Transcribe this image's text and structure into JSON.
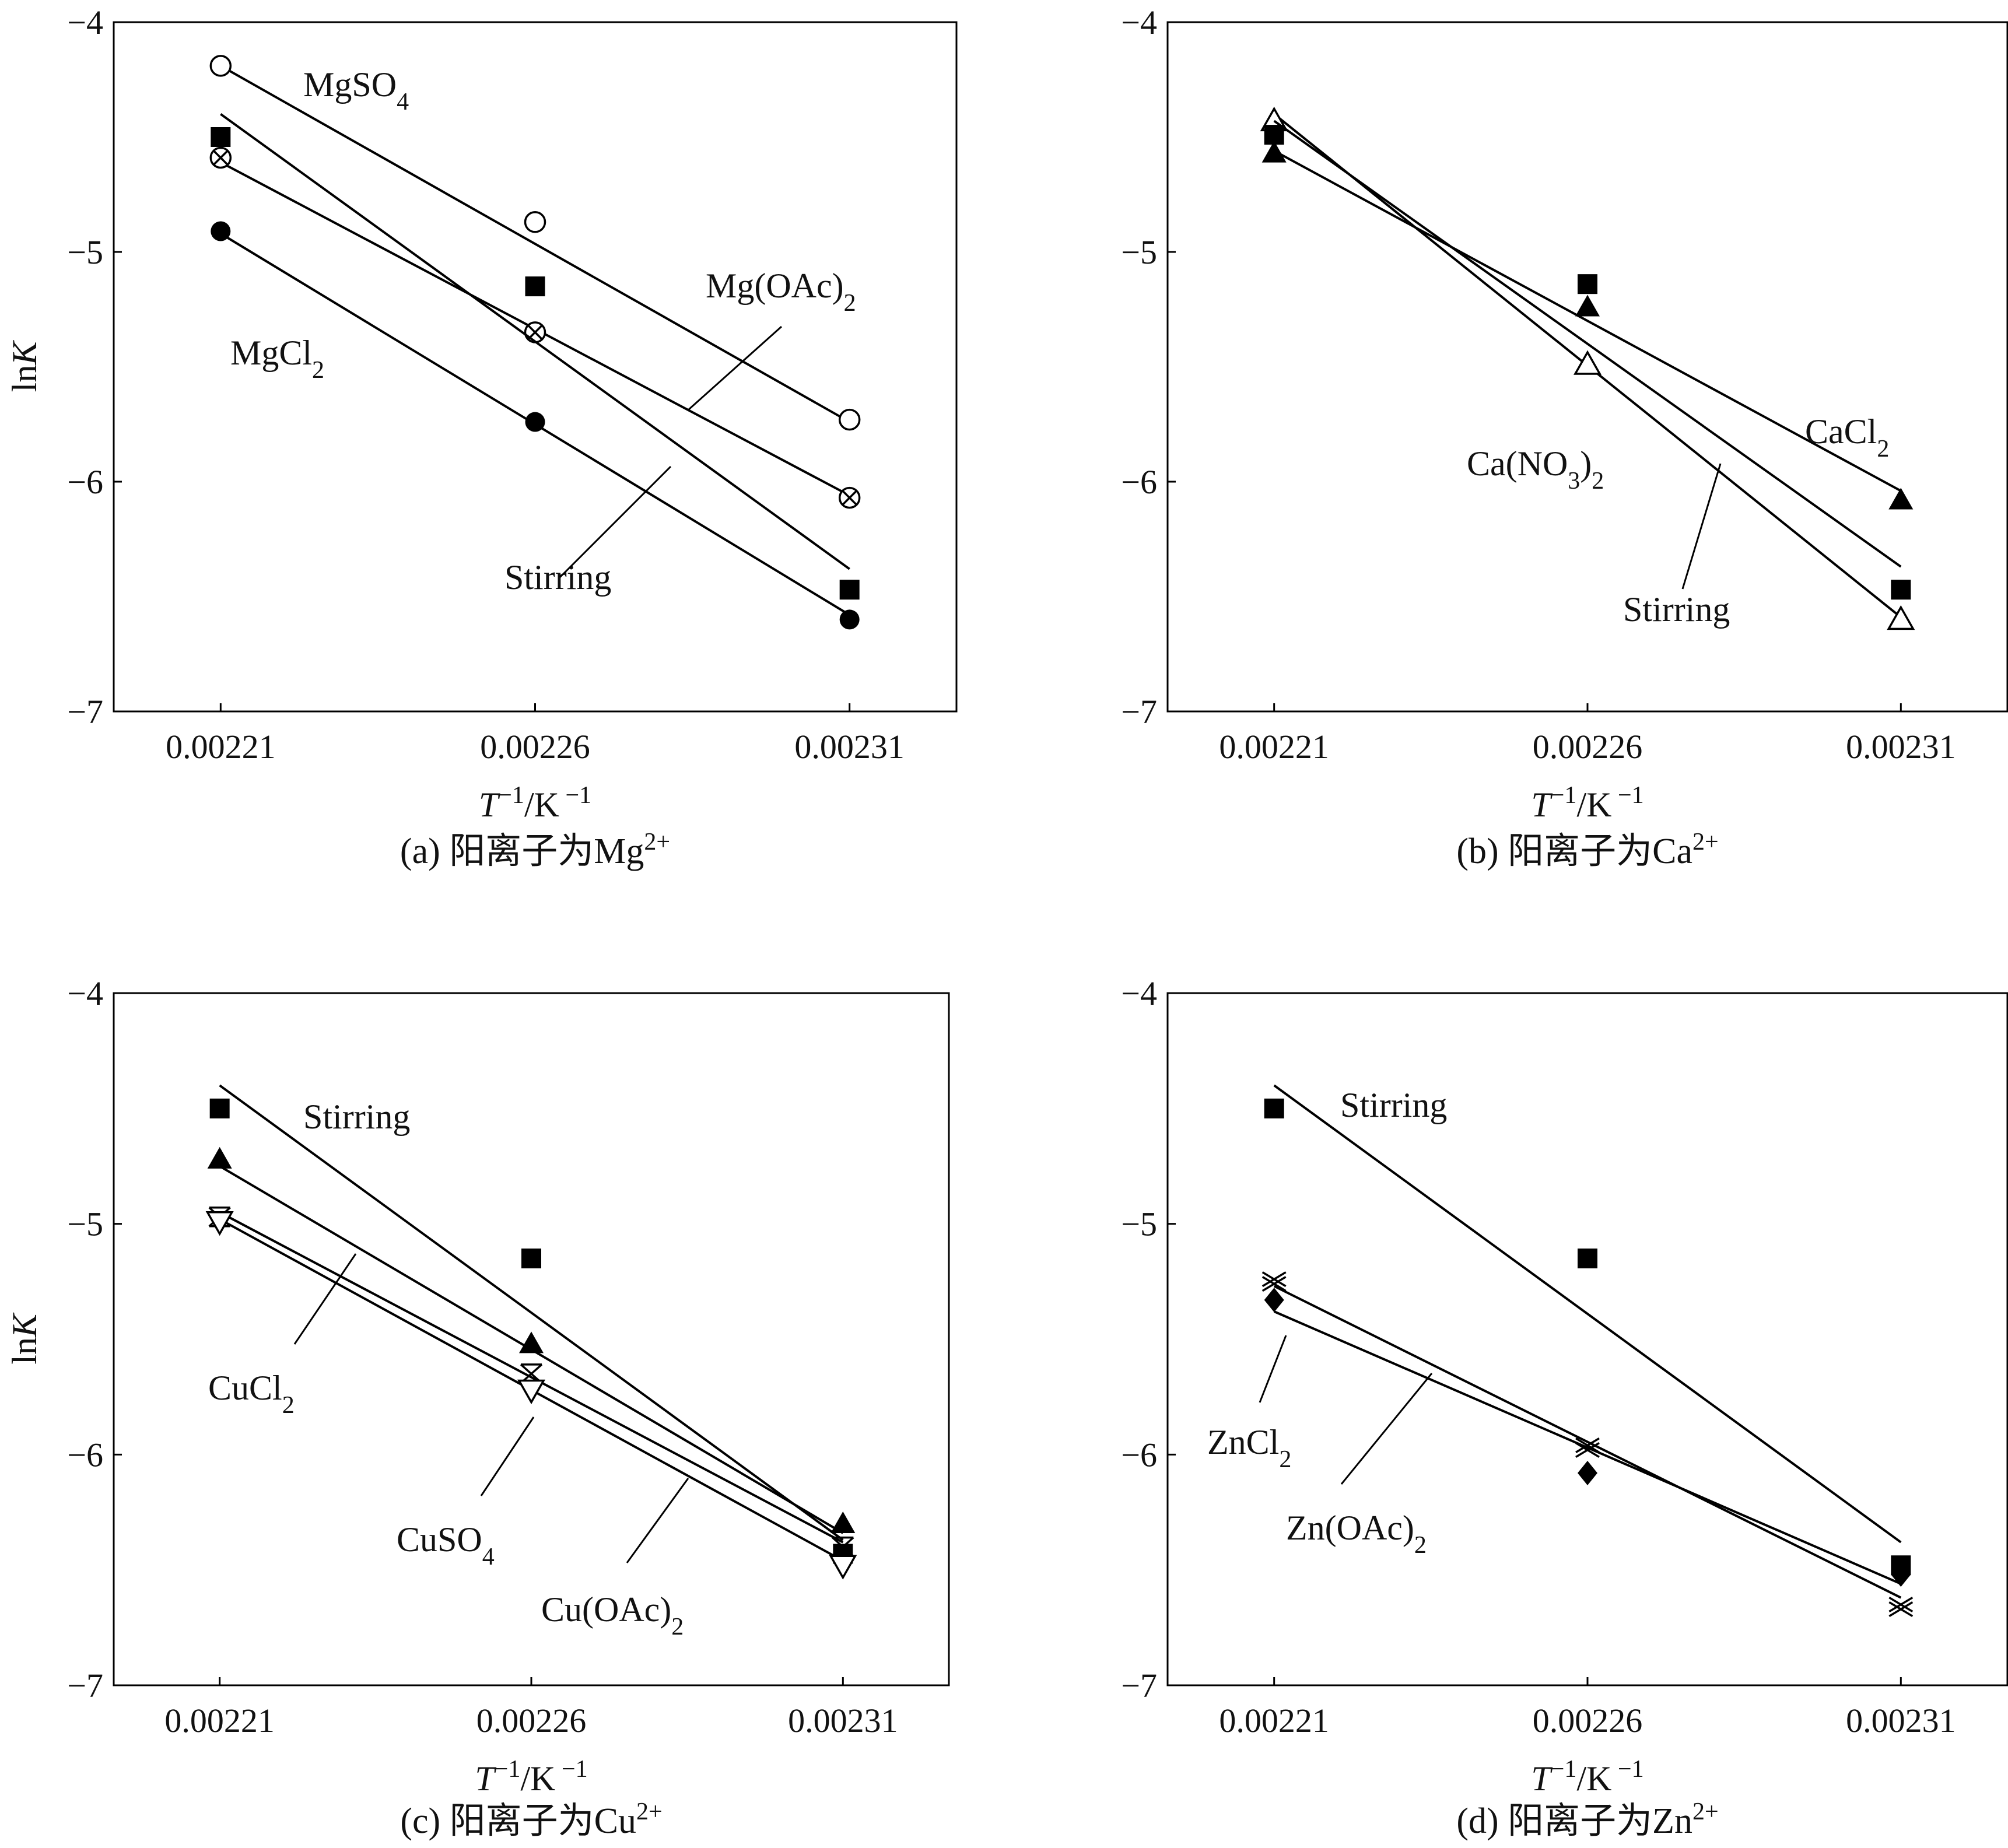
{
  "figure_title": "",
  "chart_data": [
    {
      "panel": "a",
      "type": "scatter",
      "caption": "(a) 阳离子为Mg",
      "caption_ion_charge": "2+",
      "xlabel": "T",
      "xlabel_sup": "−1",
      "xlabel_unit": "/K",
      "xlabel_unit_sup": "−1",
      "ylabel": "ln",
      "ylabel_italic": "K",
      "xticks": [
        "0.00221",
        "0.00226",
        "0.00231"
      ],
      "yticks": [
        "−4",
        "−5",
        "−6",
        "−7"
      ],
      "xlim": [
        0.002193,
        0.002327
      ],
      "ylim": [
        -7,
        -4
      ],
      "series": [
        {
          "name": "MgSO4",
          "label": "MgSO",
          "label_sub": "4",
          "marker": "open-circle",
          "x": [
            0.00221,
            0.00226,
            0.00231
          ],
          "y": [
            -4.19,
            -4.87,
            -5.73
          ],
          "fit": [
            -4.19,
            -5.74
          ]
        },
        {
          "name": "Mg(OAc)2",
          "label": "Mg(OAc)",
          "label_sub": "2",
          "marker": "circle-x",
          "x": [
            0.00221,
            0.00226,
            0.00231
          ],
          "y": [
            -4.59,
            -5.35,
            -6.07
          ],
          "fit": [
            -4.61,
            -6.06
          ]
        },
        {
          "name": "MgCl2",
          "label": "MgCl",
          "label_sub": "2",
          "marker": "filled-circle",
          "x": [
            0.00221,
            0.00226,
            0.00231
          ],
          "y": [
            -4.91,
            -5.74,
            -6.6
          ],
          "fit": [
            -4.92,
            -6.58
          ]
        },
        {
          "name": "Stirring",
          "label": "Stirring",
          "label_sub": "",
          "marker": "filled-square",
          "x": [
            0.00221,
            0.00226,
            0.00231
          ],
          "y": [
            -4.5,
            -5.15,
            -6.47
          ],
          "fit": [
            -4.4,
            -6.38
          ]
        }
      ]
    },
    {
      "panel": "b",
      "type": "scatter",
      "caption": "(b) 阳离子为Ca",
      "caption_ion_charge": "2+",
      "xlabel": "T",
      "xlabel_sup": "−1",
      "xlabel_unit": "/K",
      "xlabel_unit_sup": "−1",
      "ylabel": "ln",
      "ylabel_italic": "K",
      "xticks": [
        "0.00221",
        "0.00226",
        "0.00231"
      ],
      "yticks": [
        "−4",
        "−5",
        "−6",
        "−7"
      ],
      "xlim": [
        0.002193,
        0.002327
      ],
      "ylim": [
        -7,
        -4
      ],
      "series": [
        {
          "name": "CaCl2",
          "label": "CaCl",
          "label_sub": "2",
          "marker": "filled-triangle",
          "x": [
            0.00221,
            0.00226,
            0.00231
          ],
          "y": [
            -4.57,
            -5.24,
            -6.08
          ],
          "fit": [
            -4.56,
            -6.04
          ]
        },
        {
          "name": "Ca(NO3)2",
          "label": "Ca(NO",
          "label_sub": "3",
          "label_tail": ")",
          "label_sub2": "2",
          "marker": "open-triangle",
          "x": [
            0.00221,
            0.00226,
            0.00231
          ],
          "y": [
            -4.43,
            -5.49,
            -6.6
          ],
          "fit": [
            -4.4,
            -6.59
          ]
        },
        {
          "name": "Stirring",
          "label": "Stirring",
          "label_sub": "",
          "marker": "filled-square",
          "x": [
            0.00221,
            0.00226,
            0.00231
          ],
          "y": [
            -4.49,
            -5.14,
            -6.47
          ],
          "fit": [
            -4.43,
            -6.37
          ]
        }
      ]
    },
    {
      "panel": "c",
      "type": "scatter",
      "caption": "(c) 阳离子为Cu",
      "caption_ion_charge": "2+",
      "xlabel": "T",
      "xlabel_sup": "−1",
      "xlabel_unit": "/K",
      "xlabel_unit_sup": "−1",
      "ylabel": "ln",
      "ylabel_italic": "K",
      "xticks": [
        "0.00221",
        "0.00226",
        "0.00231"
      ],
      "yticks": [
        "−4",
        "−5",
        "−6",
        "−7"
      ],
      "xlim": [
        0.002193,
        0.002327
      ],
      "ylim": [
        -7,
        -4
      ],
      "series": [
        {
          "name": "Stirring",
          "label": "Stirring",
          "label_sub": "",
          "marker": "filled-square",
          "x": [
            0.00221,
            0.00226,
            0.00231
          ],
          "y": [
            -4.5,
            -5.15,
            -6.43
          ],
          "fit": [
            -4.4,
            -6.37
          ]
        },
        {
          "name": "CuCl2",
          "label": "CuCl",
          "label_sub": "2",
          "marker": "filled-triangle",
          "x": [
            0.00221,
            0.00226,
            0.00231
          ],
          "y": [
            -4.72,
            -5.52,
            -6.3
          ],
          "fit": [
            -4.75,
            -6.34
          ]
        },
        {
          "name": "CuSO4",
          "label": "CuSO",
          "label_sub": "4",
          "marker": "star-x",
          "x": [
            0.00221,
            0.00226,
            0.00231
          ],
          "y": [
            -4.97,
            -5.65,
            -6.4
          ],
          "fit": [
            -4.95,
            -6.38
          ]
        },
        {
          "name": "Cu(OAc)2",
          "label": "Cu(OAc)",
          "label_sub": "2",
          "marker": "open-down-triangle",
          "x": [
            0.00221,
            0.00226,
            0.00231
          ],
          "y": [
            -4.99,
            -5.72,
            -6.48
          ],
          "fit": [
            -4.98,
            -6.46
          ]
        }
      ]
    },
    {
      "panel": "d",
      "type": "scatter",
      "caption": "(d) 阳离子为Zn",
      "caption_ion_charge": "2+",
      "xlabel": "T",
      "xlabel_sup": "−1",
      "xlabel_unit": "/K",
      "xlabel_unit_sup": "−1",
      "ylabel": "ln",
      "ylabel_italic": "K",
      "xticks": [
        "0.00221",
        "0.00226",
        "0.00231"
      ],
      "yticks": [
        "−4",
        "−5",
        "−6",
        "−7"
      ],
      "xlim": [
        0.002193,
        0.002327
      ],
      "ylim": [
        -7,
        -4
      ],
      "series": [
        {
          "name": "Stirring",
          "label": "Stirring",
          "label_sub": "",
          "marker": "filled-square",
          "x": [
            0.00221,
            0.00226,
            0.00231
          ],
          "y": [
            -4.5,
            -5.15,
            -6.48
          ],
          "fit": [
            -4.4,
            -6.38
          ]
        },
        {
          "name": "ZnCl2",
          "label": "ZnCl",
          "label_sub": "2",
          "marker": "x-cross",
          "x": [
            0.00221,
            0.00226,
            0.00231
          ],
          "y": [
            -5.24,
            -5.96,
            -6.65
          ],
          "fit": [
            -5.27,
            -6.62
          ]
        },
        {
          "name": "Zn(OAc)2",
          "label": "Zn(OAc)",
          "label_sub": "2",
          "marker": "filled-diamond",
          "x": [
            0.00221,
            0.00226,
            0.00231
          ],
          "y": [
            -5.33,
            -6.08,
            -6.52
          ],
          "fit": [
            -5.38,
            -6.56
          ]
        }
      ]
    }
  ]
}
